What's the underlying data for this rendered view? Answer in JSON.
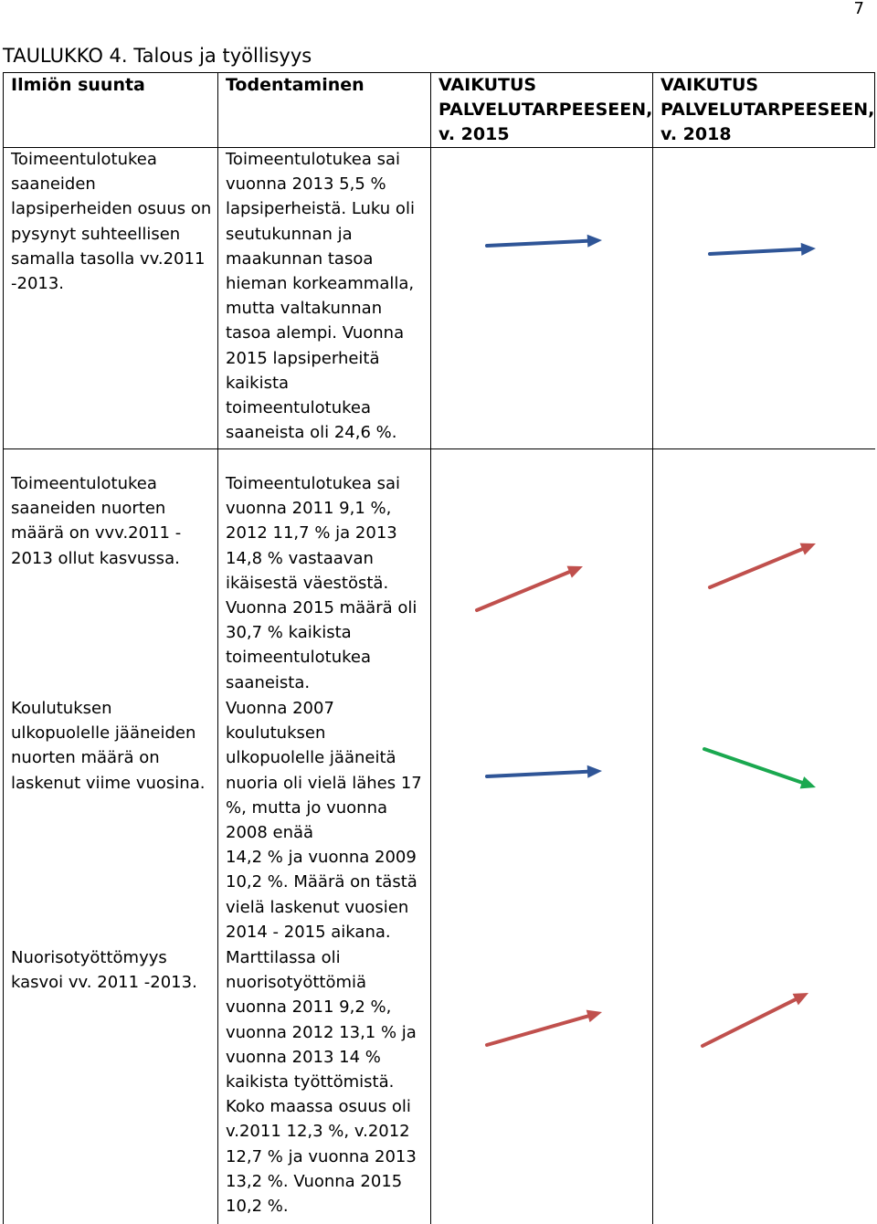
{
  "page_number": "7",
  "table_title": "TAULUKKO 4. Talous ja työllisyys",
  "headers": {
    "direction": "Ilmiön suunta",
    "verification": "Todentaminen",
    "impact_2015": "VAIKUTUS\nPALVELUTARPEESEEN,\nv. 2015",
    "impact_2018": "VAIKUTUS\nPALVELUTARPEESEEN,\nv. 2018"
  },
  "rows": [
    {
      "direction": "Toimeentulotukea\nsaaneiden\nlapsiperheiden osuus on\npysynyt suhteellisen\nsamalla tasolla vv.2011\n-2013.",
      "verification": "Toimeentulotukea sai\nvuonna 2013 5,5 %\nlapsiperheistä. Luku oli\nseutukunnan ja\nmaakunnan tasoa\nhieman korkeammalla,\nmutta valtakunnan\ntasoa alempi. Vuonna\n2015 lapsiperheitä\nkaikista\ntoimeentulotukea\nsaaneista oli 24,6 %.",
      "impact_2015": "flat",
      "impact_2018": "flat"
    },
    {
      "direction": "Toimeentulotukea\nsaaneiden nuorten\nmäärä on vvv.2011 -\n2013 ollut kasvussa.",
      "verification": "Toimeentulotukea sai\nvuonna 2011 9,1 %,\n2012 11,7 % ja 2013\n14,8 % vastaavan\nikäisestä väestöstä.\nVuonna 2015 määrä oli\n30,7 % kaikista\ntoimeentulotukea\nsaaneista.",
      "impact_2015": "up",
      "impact_2018": "up"
    },
    {
      "direction": "Koulutuksen\nulkopuolelle jääneiden\nnuorten määrä on\nlaskenut viime vuosina.",
      "verification": "Vuonna 2007\nkoulutuksen\nulkopuolelle jääneitä\nnuoria oli vielä lähes 17\n%, mutta jo vuonna\n2008 enää\n14,2 % ja vuonna 2009\n10,2 %. Määrä on tästä\nvielä laskenut vuosien\n2014 - 2015 aikana.",
      "impact_2015": "flat",
      "impact_2018": "down"
    },
    {
      "direction": "Nuorisotyöttömyys\nkasvoi vv. 2011 -2013.",
      "verification": "Marttilassa oli\nnuorisotyöttömiä\nvuonna 2011 9,2 %,\nvuonna 2012 13,1 % ja\nvuonna 2013 14 %\nkaikista työttömistä.\nKoko maassa osuus oli\nv.2011 12,3 %, v.2012\n12,7 % ja vuonna 2013\n13,2 %. Vuonna 2015\n10,2 %.",
      "impact_2015": "up",
      "impact_2018": "up"
    }
  ],
  "colors": {
    "flat": "#2f5597",
    "up": "#c0504d",
    "down": "#1aa84f"
  }
}
